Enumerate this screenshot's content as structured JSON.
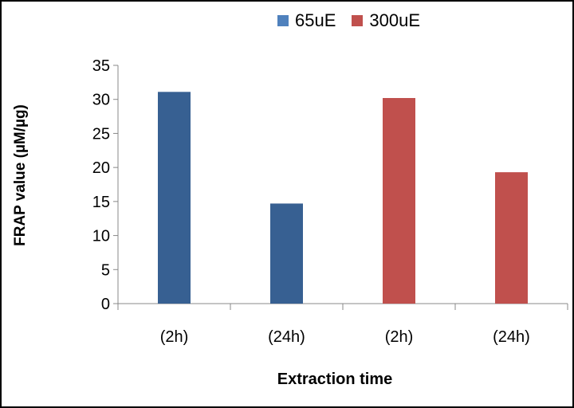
{
  "chart_data": {
    "type": "bar",
    "categories": [
      "(2h)",
      "(24h)",
      "(2h)",
      "(24h)"
    ],
    "series": [
      {
        "name": "65uE",
        "values": [
          31.1,
          14.7,
          null,
          null
        ],
        "color": "#376092"
      },
      {
        "name": "300uE",
        "values": [
          null,
          null,
          30.2,
          19.3
        ],
        "color": "#c0504d"
      }
    ],
    "legend_items": [
      {
        "name": "65uE",
        "color": "#4f81bd"
      },
      {
        "name": "300uE",
        "color": "#c0504d"
      }
    ],
    "ylim": [
      0,
      35
    ],
    "yticks": [
      "0",
      "5",
      "10",
      "15",
      "20",
      "25",
      "30",
      "35"
    ],
    "xlabel": "Extraction time",
    "ylabel": "FRAP value (µM/µg)",
    "legend_position": "top-right",
    "grid": false
  }
}
